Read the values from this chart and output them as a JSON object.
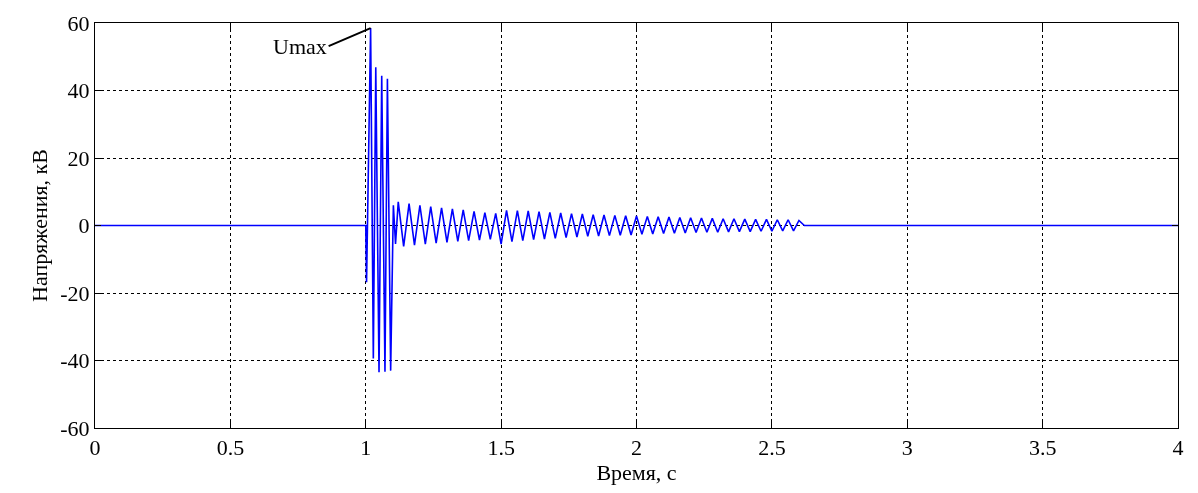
{
  "chart_data": {
    "type": "line",
    "xlabel": "Время, с",
    "ylabel": "Напряжения, кВ",
    "x": [
      0,
      1.0,
      1.003,
      1.018,
      1.028,
      1.037,
      1.049,
      1.059,
      1.071,
      1.08,
      1.092,
      1.102,
      1.11,
      1.12,
      1.14,
      1.16,
      1.18,
      1.2,
      1.22,
      1.24,
      1.26,
      1.28,
      1.3,
      1.32,
      1.34,
      1.36,
      1.38,
      1.4,
      1.42,
      1.44,
      1.46,
      1.48,
      1.5,
      1.52,
      1.54,
      1.56,
      1.58,
      1.6,
      1.62,
      1.64,
      1.66,
      1.68,
      1.7,
      1.72,
      1.74,
      1.76,
      1.78,
      1.8,
      1.82,
      1.84,
      1.86,
      1.88,
      1.9,
      1.92,
      1.94,
      1.96,
      1.98,
      2.0,
      2.02,
      2.04,
      2.06,
      2.08,
      2.1,
      2.12,
      2.14,
      2.16,
      2.18,
      2.2,
      2.22,
      2.24,
      2.26,
      2.28,
      2.3,
      2.32,
      2.34,
      2.36,
      2.38,
      2.4,
      2.42,
      2.44,
      2.46,
      2.48,
      2.5,
      2.52,
      2.54,
      2.56,
      2.58,
      2.6,
      2.62,
      4
    ],
    "series": [
      {
        "color": "#0000ff",
        "values": [
          0,
          0,
          -16.8,
          58.5,
          -39.4,
          46.9,
          -43.5,
          44.4,
          -43.3,
          43.5,
          -43,
          6,
          -5.5,
          7.0,
          -6.2,
          6.5,
          -5.8,
          6.0,
          -5.5,
          5.6,
          -5.2,
          5.2,
          -5.0,
          4.9,
          -4.7,
          4.6,
          -4.5,
          4.2,
          -4.3,
          3.8,
          -4.1,
          3.6,
          -5.5,
          4.5,
          -4.8,
          4.4,
          -4.5,
          4.3,
          -4.2,
          4.1,
          -4.0,
          3.9,
          -3.8,
          3.7,
          -3.6,
          3.5,
          -3.4,
          3.4,
          -3.2,
          3.2,
          -3.1,
          3.1,
          -3.0,
          3.0,
          -2.9,
          2.9,
          -2.8,
          2.8,
          -2.6,
          2.7,
          -2.5,
          2.6,
          -2.4,
          2.5,
          -2.3,
          2.4,
          -2.2,
          2.3,
          -2.1,
          2.2,
          -2.0,
          2.1,
          -2.0,
          2.0,
          -1.9,
          2.0,
          -1.8,
          1.9,
          -1.8,
          1.8,
          -1.7,
          1.8,
          -1.7,
          1.7,
          -1.6,
          1.7,
          -1.6,
          1.5,
          0,
          0
        ]
      }
    ],
    "xlim": [
      0,
      4
    ],
    "xticks": [
      0,
      0.5,
      1,
      1.5,
      2,
      2.5,
      3,
      3.5,
      4
    ],
    "ylim": [
      -60,
      60
    ],
    "yticks": [
      -60,
      -40,
      -20,
      0,
      20,
      40,
      60
    ],
    "grid": true,
    "marker": "none",
    "line_style": "solid",
    "annotations": [
      {
        "text": "Umax",
        "x": 1.018,
        "y": 58.5
      }
    ]
  }
}
